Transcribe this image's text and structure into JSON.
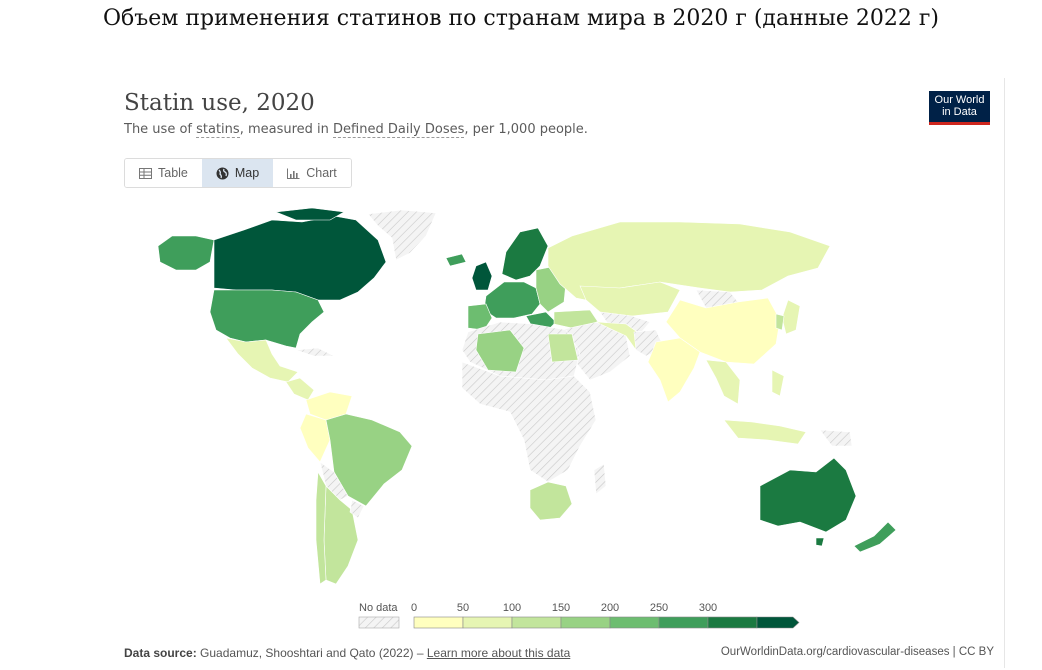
{
  "caption": "Объем применения статинов по странам мира в 2020 г (данные 2022 г)",
  "title": "Statin use, 2020",
  "subtitle": {
    "prefix": "The use of ",
    "term1": "statins",
    "mid": ", measured in ",
    "term2": "Defined Daily Doses",
    "suffix": ", per 1,000 people."
  },
  "logo": {
    "line1": "Our World",
    "line2": "in Data"
  },
  "tabs": [
    {
      "label": "Table",
      "icon": "table-icon",
      "active": false
    },
    {
      "label": "Map",
      "icon": "globe-icon",
      "active": true
    },
    {
      "label": "Chart",
      "icon": "chart-icon",
      "active": false
    }
  ],
  "legend": {
    "no_data_label": "No data",
    "ticks": [
      "0",
      "50",
      "100",
      "150",
      "200",
      "250",
      "300"
    ],
    "colors": [
      "#ffffbf",
      "#e6f5b3",
      "#c2e59c",
      "#98d284",
      "#6dbd70",
      "#3f9e5b",
      "#1b7a41",
      "#00563a"
    ],
    "no_data_color": "#f2f2f2"
  },
  "footer": {
    "source_label": "Data source:",
    "source_text": " Guadamuz, Shooshtari and Qato (2022) – ",
    "learn_more": "Learn more about this data",
    "url_text": "OurWorldinData.org/cardiovascular-diseases | CC BY"
  },
  "map_data": {
    "regions": [
      {
        "name": "Canada",
        "bin": 7
      },
      {
        "name": "United States",
        "bin": 5
      },
      {
        "name": "Mexico",
        "bin": 1
      },
      {
        "name": "Brazil",
        "bin": 3
      },
      {
        "name": "Argentina",
        "bin": 2
      },
      {
        "name": "Russia",
        "bin": 1
      },
      {
        "name": "China",
        "bin": 0
      },
      {
        "name": "Australia",
        "bin": 6
      },
      {
        "name": "New Zealand",
        "bin": 5
      },
      {
        "name": "United Kingdom",
        "bin": 7
      },
      {
        "name": "Scandinavia",
        "bin": 6
      },
      {
        "name": "Algeria",
        "bin": 3
      },
      {
        "name": "South Africa",
        "bin": 2
      },
      {
        "name": "Greenland",
        "bin": "none"
      }
    ]
  }
}
